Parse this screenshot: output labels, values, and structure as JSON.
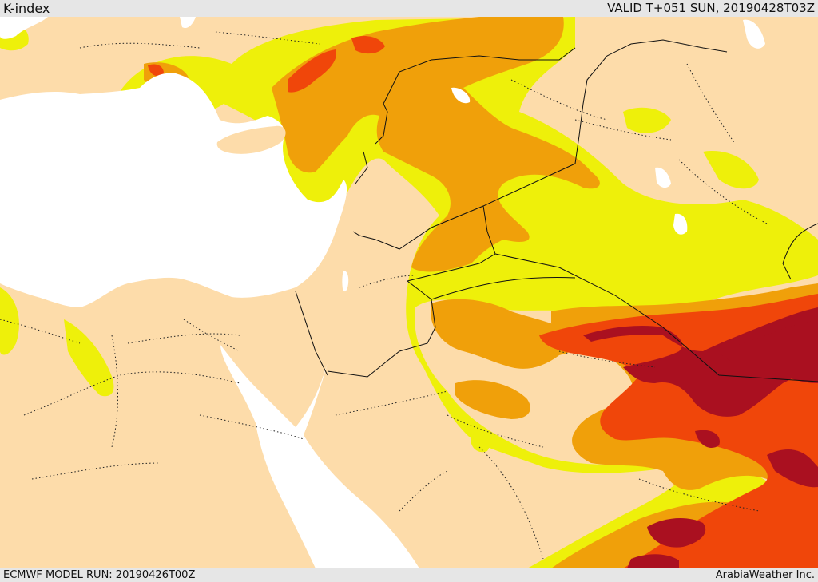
{
  "header": {
    "title": "K-index",
    "valid_time": "VALID T+051 SUN, 20190428T03Z"
  },
  "footer": {
    "model_run": "ECMWF MODEL RUN: 20190426T00Z",
    "credit": "ArabiaWeather Inc."
  },
  "colors": {
    "land": "#fddcaa",
    "sea": "#ffffff",
    "k_level_1": "#eef00a",
    "k_level_2": "#f0a00a",
    "k_level_3": "#f0460a",
    "k_level_4": "#aa1020",
    "border": "#111111"
  }
}
